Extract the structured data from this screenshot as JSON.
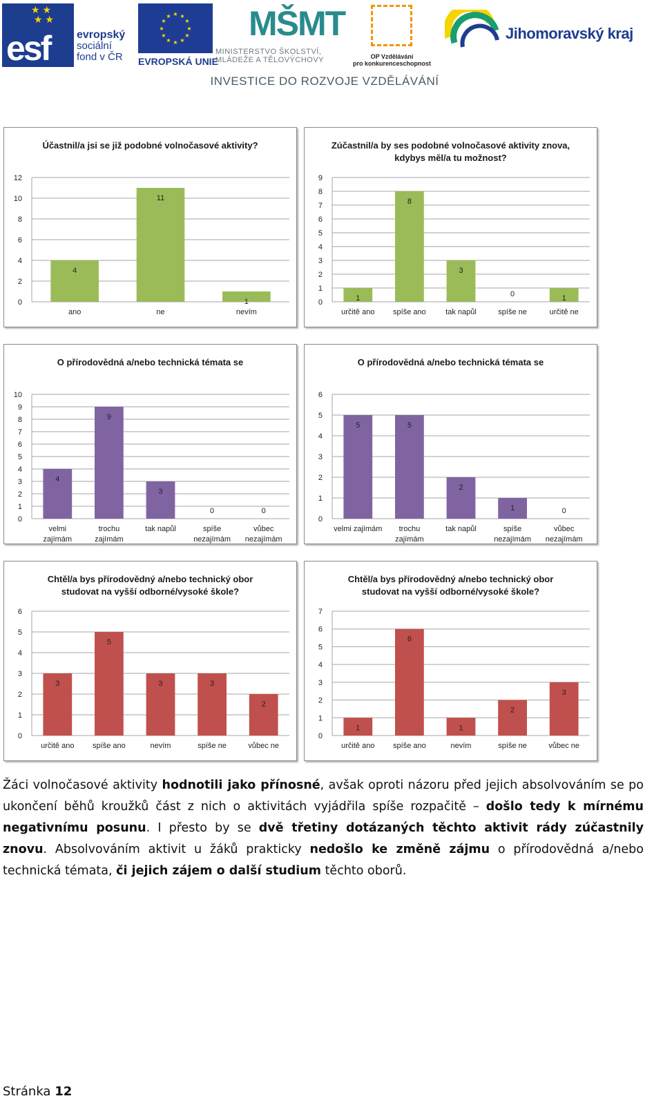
{
  "header": {
    "esf": {
      "mark": "esf",
      "line1": "evropský",
      "line2": "sociální",
      "line3": "fond v ČR"
    },
    "eu": {
      "label": "EVROPSKÁ UNIE"
    },
    "msmt": {
      "mark": "MŠMT",
      "line1": "MINISTERSTVO ŠKOLSTVÍ,",
      "line2": "MLÁDEŽE A TĚLOVÝCHOVY"
    },
    "opvk": {
      "line1": "OP Vzdělávání",
      "line2": "pro konkurenceschopnost"
    },
    "jmk": {
      "label": "Jihomoravský kraj"
    },
    "tagline": "INVESTICE DO ROZVOJE VZDĚLÁVÁNÍ"
  },
  "colors": {
    "green": "#9bbb59",
    "purple": "#8064a2",
    "red": "#c0504d",
    "grid": "#a6a6a6"
  },
  "chart_data": [
    {
      "type": "bar",
      "title": [
        "Účastnil/a jsi se již podobné volnočasové aktivity?"
      ],
      "categories": [
        [
          "ano"
        ],
        [
          "ne"
        ],
        [
          "nevím"
        ]
      ],
      "values": [
        4,
        11,
        1
      ],
      "ylim": [
        0,
        12
      ],
      "yticks": [
        0,
        2,
        4,
        6,
        8,
        10,
        12
      ],
      "color": "#9bbb59",
      "grid": true
    },
    {
      "type": "bar",
      "title": [
        "Zúčastnil/a by ses podobné volnočasové aktivity znova,",
        "kdybys měl/a tu možnost?"
      ],
      "categories": [
        [
          "určitě ano"
        ],
        [
          "spíše ano"
        ],
        [
          "tak napůl"
        ],
        [
          "spíše ne"
        ],
        [
          "určitě ne"
        ]
      ],
      "values": [
        1,
        8,
        3,
        0,
        1
      ],
      "ylim": [
        0,
        9
      ],
      "yticks": [
        0,
        1,
        2,
        3,
        4,
        5,
        6,
        7,
        8,
        9
      ],
      "color": "#9bbb59",
      "grid": true
    },
    {
      "type": "bar",
      "title": [
        "O přírodovědná a/nebo technická témata se"
      ],
      "categories": [
        [
          "velmi",
          "zajímám"
        ],
        [
          "trochu",
          "zajímám"
        ],
        [
          "tak napůl"
        ],
        [
          "spíše",
          "nezajímám"
        ],
        [
          "vůbec",
          "nezajímám"
        ]
      ],
      "values": [
        4,
        9,
        3,
        0,
        0
      ],
      "ylim": [
        0,
        10
      ],
      "yticks": [
        0,
        1,
        2,
        3,
        4,
        5,
        6,
        7,
        8,
        9,
        10
      ],
      "color": "#8064a2",
      "grid": true
    },
    {
      "type": "bar",
      "title": [
        "O přírodovědná a/nebo technická témata se"
      ],
      "categories": [
        [
          "velmi zajímám"
        ],
        [
          "trochu",
          "zajímám"
        ],
        [
          "tak napůl"
        ],
        [
          "spíše",
          "nezajímám"
        ],
        [
          "vůbec",
          "nezajímám"
        ]
      ],
      "values": [
        5,
        5,
        2,
        1,
        0
      ],
      "ylim": [
        0,
        6
      ],
      "yticks": [
        0,
        1,
        2,
        3,
        4,
        5,
        6
      ],
      "color": "#8064a2",
      "grid": true
    },
    {
      "type": "bar",
      "title": [
        "Chtěl/a bys přírodovědný a/nebo technický obor",
        "studovat na vyšší odborné/vysoké škole?"
      ],
      "categories": [
        [
          "určitě ano"
        ],
        [
          "spíše ano"
        ],
        [
          "nevím"
        ],
        [
          "spíše ne"
        ],
        [
          "vůbec ne"
        ]
      ],
      "values": [
        3,
        5,
        3,
        3,
        2
      ],
      "ylim": [
        0,
        6
      ],
      "yticks": [
        0,
        1,
        2,
        3,
        4,
        5,
        6
      ],
      "color": "#c0504d",
      "grid": true
    },
    {
      "type": "bar",
      "title": [
        "Chtěl/a bys přírodovědný a/nebo technický obor",
        "studovat na vyšší odborné/vysoké škole?"
      ],
      "categories": [
        [
          "určitě ano"
        ],
        [
          "spíše ano"
        ],
        [
          "nevím"
        ],
        [
          "spíše ne"
        ],
        [
          "vůbec ne"
        ]
      ],
      "values": [
        1,
        6,
        1,
        2,
        3
      ],
      "ylim": [
        0,
        7
      ],
      "yticks": [
        0,
        1,
        2,
        3,
        4,
        5,
        6,
        7
      ],
      "color": "#c0504d",
      "grid": true
    }
  ],
  "paragraph": {
    "s1": "Žáci volnočasové aktivity ",
    "b1": "hodnotili jako přínosné",
    "s2": ", avšak oproti názoru před jejich absolvováním se po ukončení běhů kroužků část z nich o aktivitách vyjádřila spíše rozpačitě – ",
    "b2": "došlo tedy k mírnému negativnímu posunu",
    "s3": ". I přesto by se ",
    "b3": "dvě třetiny dotázaných těchto aktivit rády zúčastnily znovu",
    "s4": ". Absolvováním aktivit u žáků prakticky ",
    "b4": "nedošlo ke změně zájmu",
    "s5": " o přírodovědná a/nebo technická témata, ",
    "b5": "či jejich zájem o další studium",
    "s6": " těchto oborů."
  },
  "footer": {
    "label": "Stránka",
    "page": "12"
  }
}
